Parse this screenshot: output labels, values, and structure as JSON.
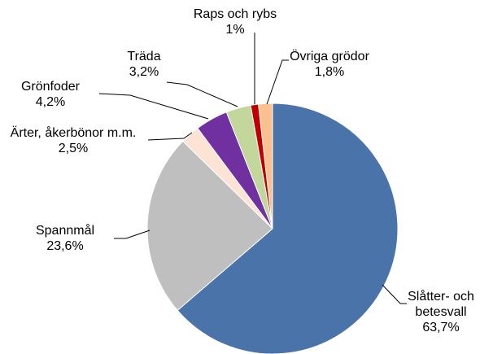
{
  "chart_data": {
    "type": "pie",
    "categories": [
      "Slåtter- och betesvall",
      "Spannmål",
      "Ärter, åkerbönor m.m.",
      "Grönfoder",
      "Träda",
      "Raps och rybs",
      "Övriga grödor"
    ],
    "values": [
      63.7,
      23.6,
      2.5,
      4.2,
      3.2,
      1,
      1.8
    ],
    "value_labels": [
      "63,7%",
      "23,6%",
      "2,5%",
      "4,2%",
      "3,2%",
      "1%",
      "1,8%"
    ],
    "colors": [
      "#4a74a9",
      "#bfbfbf",
      "#fde3d4",
      "#7030a0",
      "#c3d69b",
      "#c00000",
      "#fac090"
    ]
  }
}
